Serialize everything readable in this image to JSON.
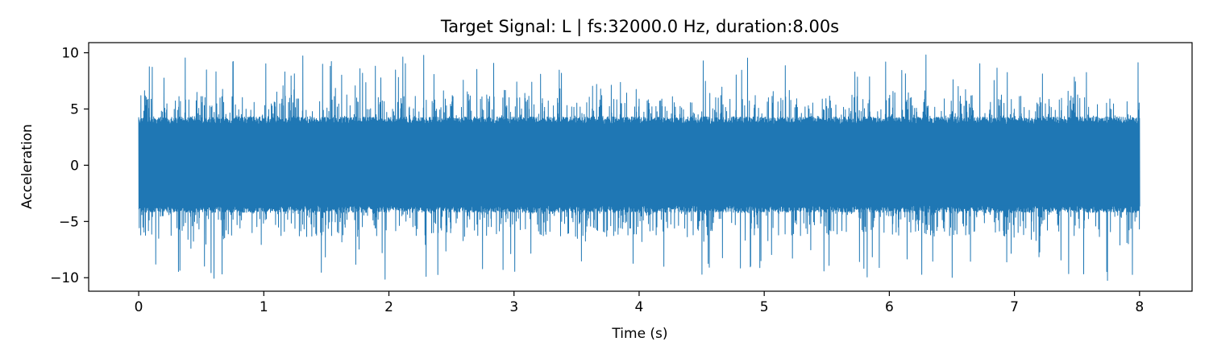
{
  "chart_data": {
    "type": "line",
    "title": "Target Signal: L  |  fs:32000.0 Hz, duration:8.00s",
    "xlabel": "Time (s)",
    "ylabel": "Acceleration",
    "xlim": [
      -0.4,
      8.42
    ],
    "ylim": [
      -11.2,
      10.9
    ],
    "x_ticks": [
      0,
      1,
      2,
      3,
      4,
      5,
      6,
      7,
      8
    ],
    "x_tick_labels": [
      "0",
      "1",
      "2",
      "3",
      "4",
      "5",
      "6",
      "7",
      "8"
    ],
    "y_ticks": [
      10,
      5,
      0,
      -5,
      -10
    ],
    "y_tick_labels": [
      "10",
      "5",
      "0",
      "−5",
      "−10"
    ],
    "grid": false,
    "series": [
      {
        "name": "L",
        "color": "#1f77b4",
        "fs": 32000.0,
        "duration": 8.0,
        "t_start": 0.0,
        "t_end": 8.0,
        "typical_range": [
          -4.2,
          4.3
        ],
        "peak_min": -10.3,
        "peak_max": 9.9
      }
    ]
  }
}
